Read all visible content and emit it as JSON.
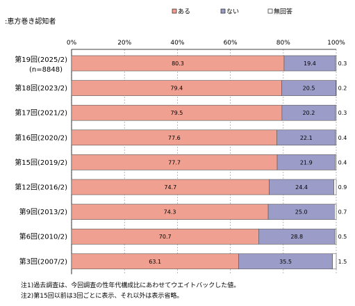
{
  "chart_data": {
    "type": "bar",
    "stacked": true,
    "orientation": "horizontal",
    "subtitle": ":恵方巻き認知者",
    "categories": [
      [
        "第19回(2025/2)",
        "(n=8848)"
      ],
      [
        "第18回(2023/2)"
      ],
      [
        "第17回(2021/2)"
      ],
      [
        "第16回(2020/2)"
      ],
      [
        "第15回(2019/2)"
      ],
      [
        "第12回(2016/2)"
      ],
      [
        "第9回(2013/2)"
      ],
      [
        "第6回(2010/2)"
      ],
      [
        "第3回(2007/2)"
      ]
    ],
    "series": [
      {
        "name": "ある",
        "color": "#f0a090",
        "values": [
          80.3,
          79.4,
          79.5,
          77.6,
          77.7,
          74.7,
          74.3,
          70.7,
          63.1
        ]
      },
      {
        "name": "ない",
        "color": "#9c9cc8",
        "values": [
          19.4,
          20.5,
          20.2,
          22.1,
          21.9,
          24.4,
          25.0,
          28.8,
          35.5
        ]
      },
      {
        "name": "無回答",
        "color": "#ffffff",
        "values": [
          0.3,
          0.2,
          0.3,
          0.4,
          0.4,
          0.9,
          0.7,
          0.5,
          1.5
        ]
      }
    ],
    "value_labels": [
      [
        "80.3",
        "19.4",
        "0.3"
      ],
      [
        "79.4",
        "20.5",
        "0.2"
      ],
      [
        "79.5",
        "20.2",
        "0.3"
      ],
      [
        "77.6",
        "22.1",
        "0.4"
      ],
      [
        "77.7",
        "21.9",
        "0.4"
      ],
      [
        "74.7",
        "24.4",
        "0.9"
      ],
      [
        "74.3",
        "25.0",
        "0.7"
      ],
      [
        "70.7",
        "28.8",
        "0.5"
      ],
      [
        "63.1",
        "35.5",
        "1.5"
      ]
    ],
    "x_ticks": [
      "0%",
      "20%",
      "40%",
      "60%",
      "80%",
      "100%"
    ],
    "xlim": [
      0,
      100
    ],
    "legend_position": "top-center",
    "grid": true
  },
  "notes": [
    "注1)過去調査は、今回調査の性年代構成比にあわせてウエイトバックした値。",
    "注2)第15回以前は3回ごとに表示、それ以外は表示省略。"
  ]
}
